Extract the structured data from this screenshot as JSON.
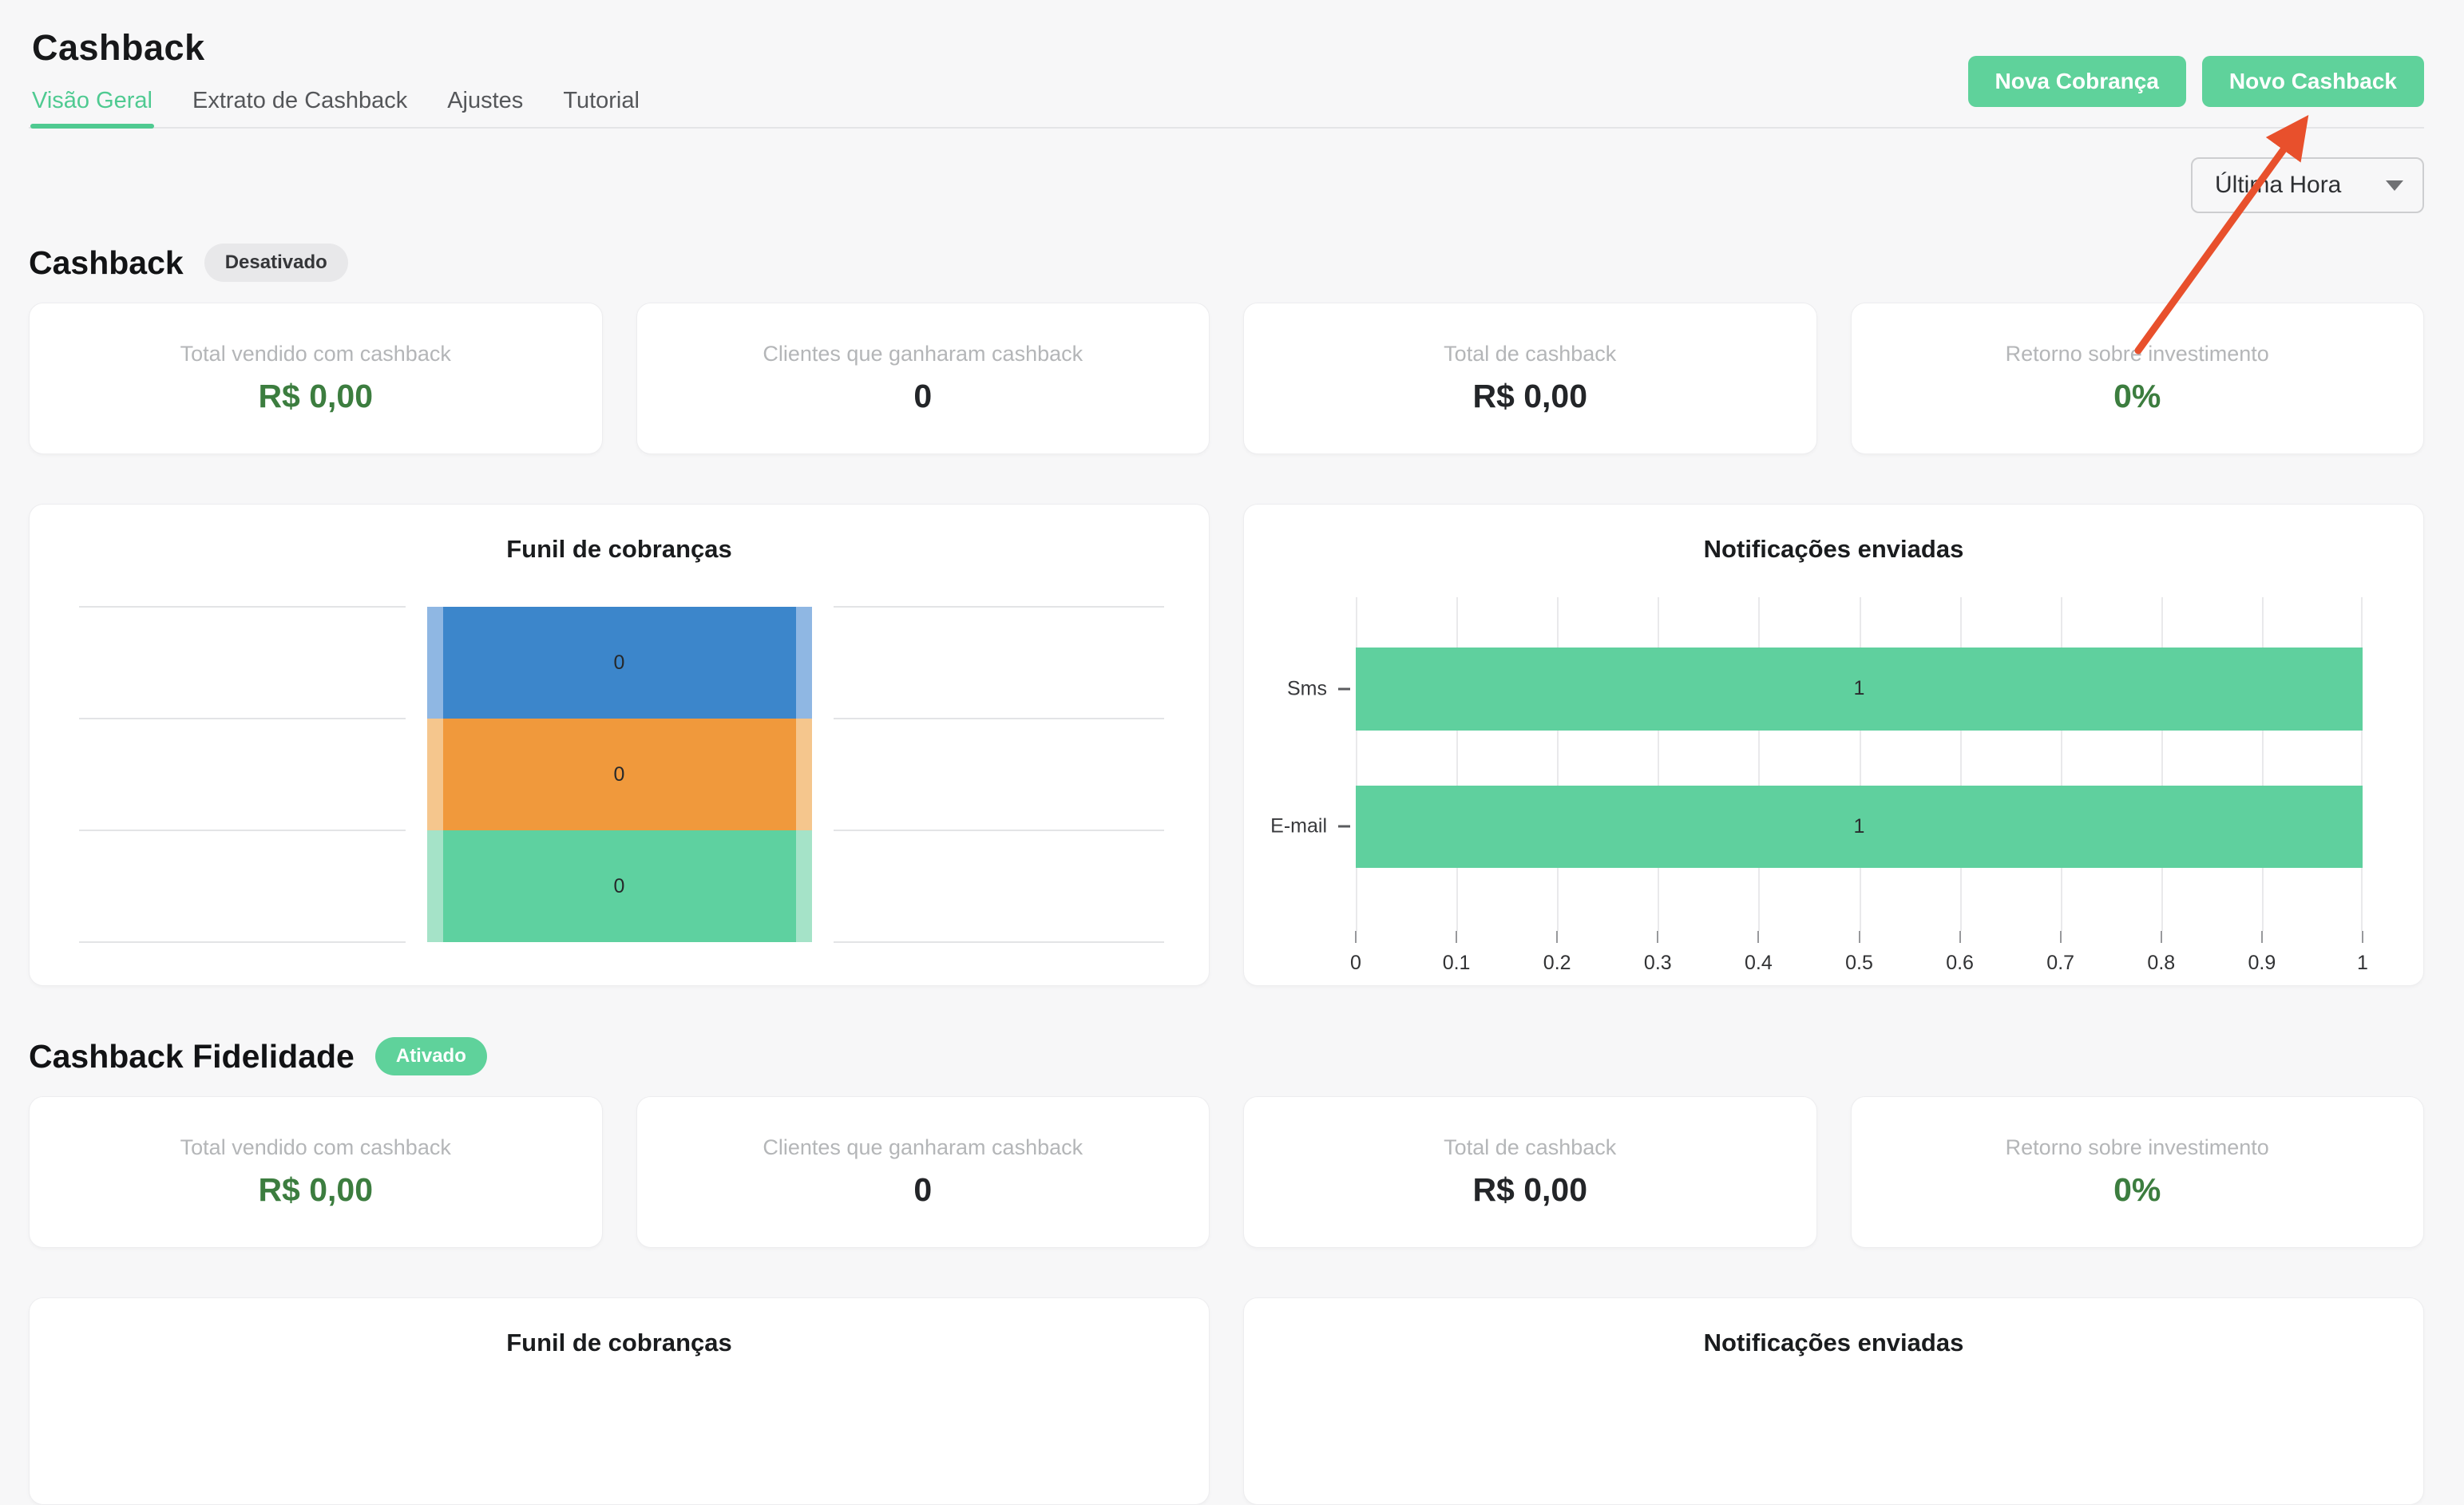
{
  "app": {
    "title": "Cashback"
  },
  "header": {
    "tabs": [
      {
        "label": "Visão Geral",
        "active": true
      },
      {
        "label": "Extrato de Cashback",
        "active": false
      },
      {
        "label": "Ajustes",
        "active": false
      },
      {
        "label": "Tutorial",
        "active": false
      }
    ],
    "actions": [
      {
        "label": "Nova Cobrança"
      },
      {
        "label": "Novo Cashback"
      }
    ]
  },
  "filter": {
    "value": "Última Hora"
  },
  "sections": [
    {
      "title": "Cashback",
      "badge": {
        "label": "Desativado",
        "state": "inactive"
      },
      "stats": [
        {
          "label": "Total vendido com cashback",
          "value": "R$ 0,00",
          "emphasis": "green"
        },
        {
          "label": "Clientes que ganharam cashback",
          "value": "0",
          "emphasis": "dark"
        },
        {
          "label": "Total de cashback",
          "value": "R$ 0,00",
          "emphasis": "dark"
        },
        {
          "label": "Retorno sobre investimento",
          "value": "0%",
          "emphasis": "green"
        }
      ]
    },
    {
      "title": "Cashback Fidelidade",
      "badge": {
        "label": "Ativado",
        "state": "active"
      },
      "stats": [
        {
          "label": "Total vendido com cashback",
          "value": "R$ 0,00",
          "emphasis": "green"
        },
        {
          "label": "Clientes que ganharam cashback",
          "value": "0",
          "emphasis": "dark"
        },
        {
          "label": "Total de cashback",
          "value": "R$ 0,00",
          "emphasis": "dark"
        },
        {
          "label": "Retorno sobre investimento",
          "value": "0%",
          "emphasis": "green"
        }
      ]
    }
  ],
  "chart_data": [
    {
      "type": "funnel",
      "title": "Funil de cobranças",
      "section": "Cashback",
      "values": [
        0,
        0,
        0
      ],
      "stage_colors": [
        "#3c86cb",
        "#f0993c",
        "#5ed1a0"
      ],
      "stage_edge_colors": [
        "#8fb7e3",
        "#f5c68d",
        "#a5e3c8"
      ],
      "grid": true
    },
    {
      "type": "bar",
      "title": "Notificações enviadas",
      "section": "Cashback",
      "orientation": "horizontal",
      "categories": [
        "Sms",
        "E-mail"
      ],
      "values": [
        1,
        1
      ],
      "value_labels": [
        "1",
        "1"
      ],
      "xlim": [
        0,
        1
      ],
      "xticks": [
        "0",
        "0.1",
        "0.2",
        "0.3",
        "0.4",
        "0.5",
        "0.6",
        "0.7",
        "0.8",
        "0.9",
        "1"
      ],
      "bar_color": "#5fd09e",
      "grid": true,
      "legend": "none"
    },
    {
      "type": "funnel",
      "title": "Funil de cobranças",
      "section": "Cashback Fidelidade",
      "partial": true
    },
    {
      "type": "bar",
      "title": "Notificações enviadas",
      "section": "Cashback Fidelidade",
      "partial": true
    }
  ],
  "annotations": {
    "arrow": {
      "color": "#e8502c",
      "points_to": "Novo Cashback"
    }
  },
  "colors": {
    "accent_green": "#5fd29b",
    "tab_active_green": "#4fca91",
    "value_green": "#3c7d3f",
    "value_dark": "#232528",
    "page_bg": "#f7f7f8"
  }
}
